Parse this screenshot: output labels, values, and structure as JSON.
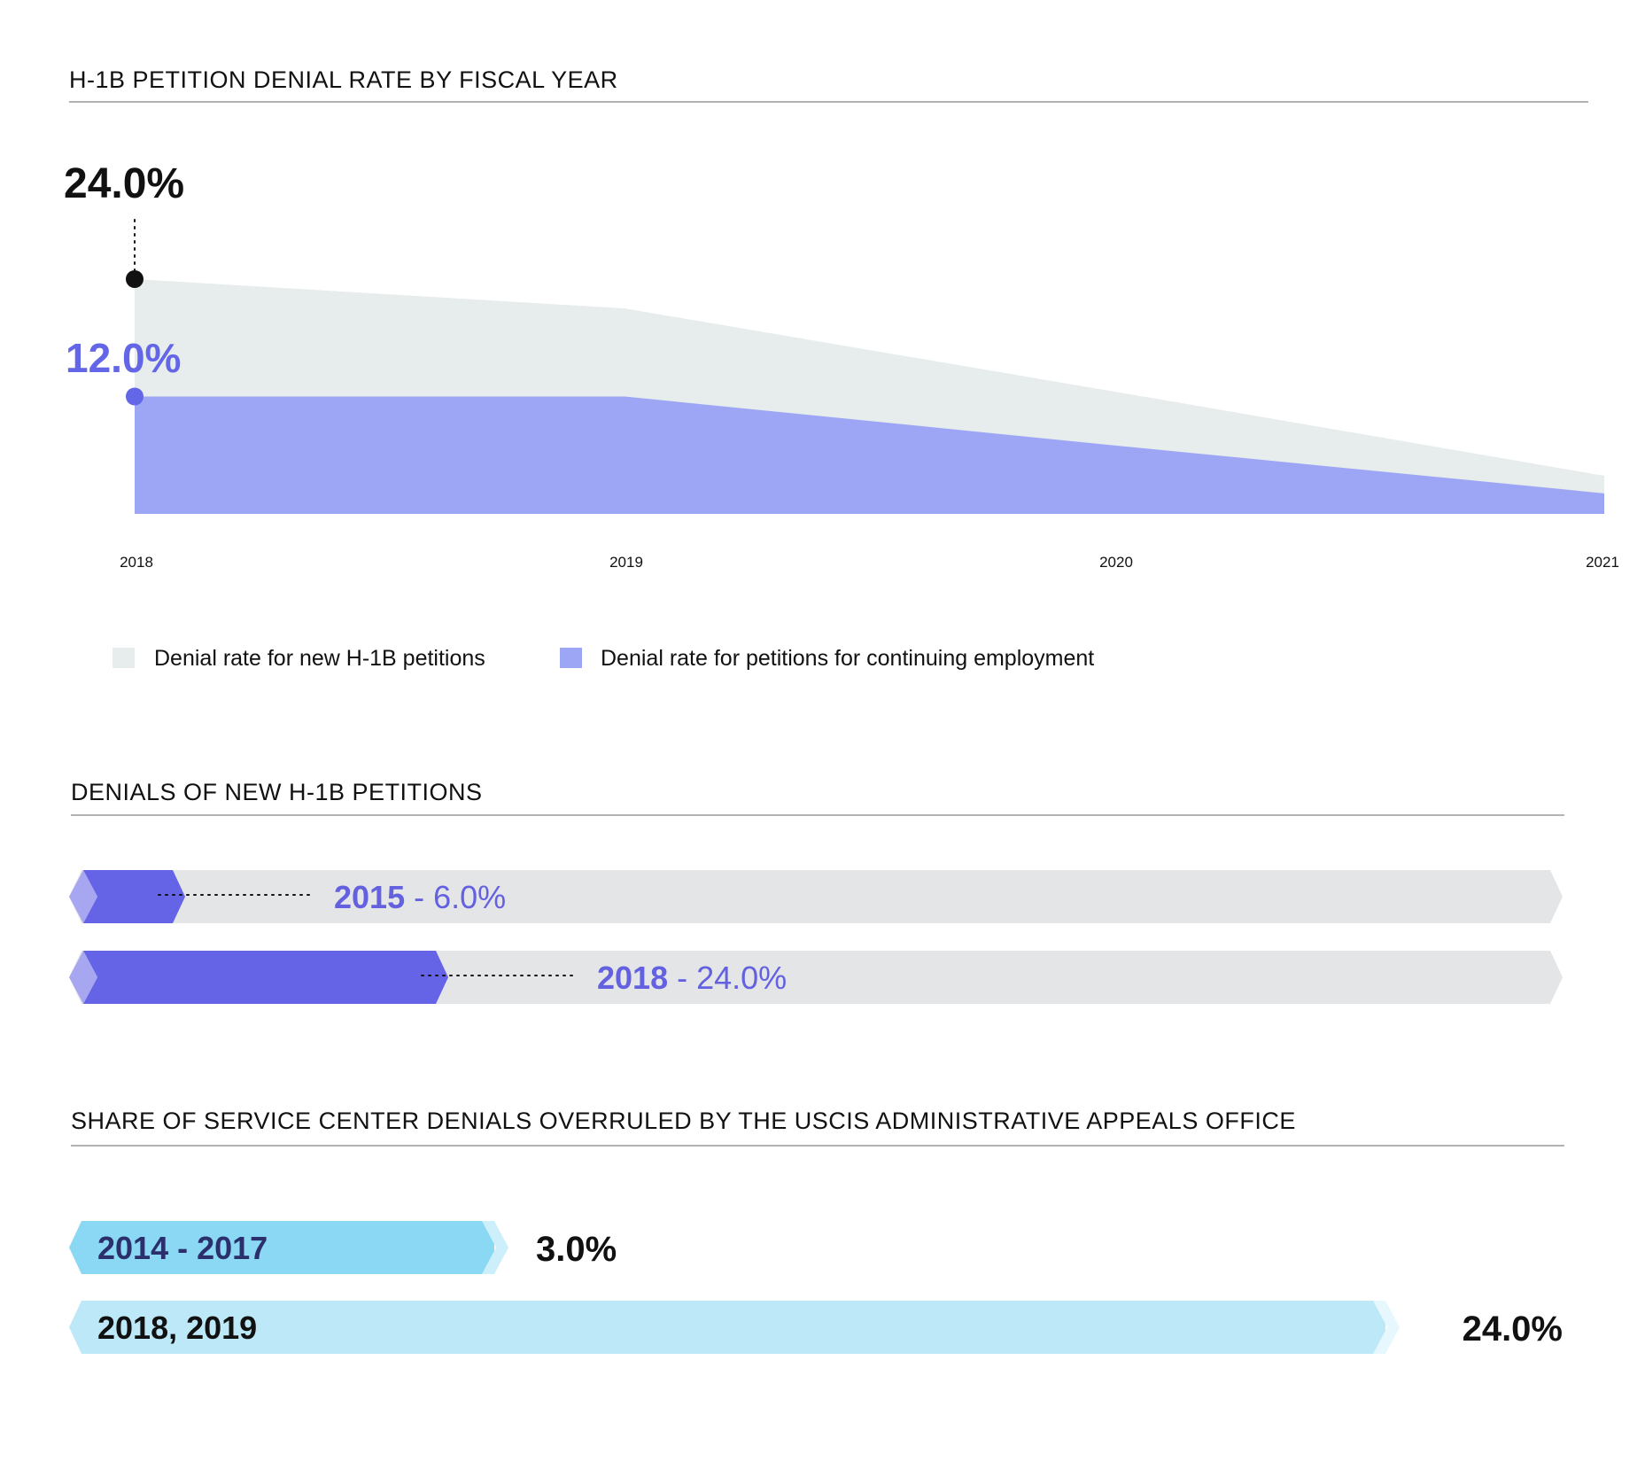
{
  "colors": {
    "new_area": "#e7ecec",
    "continuing_area": "#9da5f5",
    "continuing_point": "#6366e6",
    "black": "#111111",
    "rule": "#9a9a9a",
    "bar_track": "#e4e5e6",
    "bar_fill": "#6563e6",
    "bar_tip": "#a7a6f0",
    "bar_label": "#6361e0",
    "aao_dark": "#8ad8f4",
    "aao_light": "#bde8f7",
    "aao_tip_dark": "#cdeffa",
    "aao_tip_light": "#e6f7fd",
    "aao_label_dark": "#2b2f6b"
  },
  "chart_data": [
    {
      "type": "area",
      "title": "H-1B PETITION DENIAL RATE BY FISCAL YEAR",
      "xlabel": "",
      "ylabel": "",
      "x": [
        "2018",
        "2019",
        "2020",
        "2021"
      ],
      "series": [
        {
          "name": "Denial rate for new H-1B petitions",
          "values": [
            24.0,
            21.0,
            12.5,
            3.9
          ],
          "color": "#e7ecec"
        },
        {
          "name": "Denial rate for petitions for continuing employment",
          "values": [
            12.0,
            12.0,
            7.0,
            2.1
          ],
          "color": "#9da5f5"
        }
      ],
      "ylim": [
        0,
        24
      ],
      "grid": false,
      "legend": "bottom-left",
      "annotations": [
        {
          "series": 0,
          "x": "2018",
          "label": "24.0%",
          "color": "#111111"
        },
        {
          "series": 1,
          "x": "2018",
          "label": "12.0%",
          "color": "#6366e6"
        }
      ]
    },
    {
      "type": "bar",
      "title": "DENIALS OF NEW H-1B PETITIONS",
      "categories": [
        "2015",
        "2018"
      ],
      "values": [
        6.0,
        24.0
      ],
      "labels": [
        "2015",
        "2018"
      ],
      "value_labels": [
        "- 6.0%",
        "- 24.0%"
      ],
      "orientation": "horizontal",
      "xlim": [
        0,
        100
      ]
    },
    {
      "type": "bar",
      "title": "SHARE OF SERVICE CENTER DENIALS OVERRULED BY THE USCIS ADMINISTRATIVE APPEALS OFFICE",
      "categories": [
        "2014 - 2017",
        "2018, 2019"
      ],
      "values": [
        3.0,
        24.0
      ],
      "value_labels": [
        "3.0%",
        "24.0%"
      ],
      "orientation": "horizontal"
    }
  ]
}
